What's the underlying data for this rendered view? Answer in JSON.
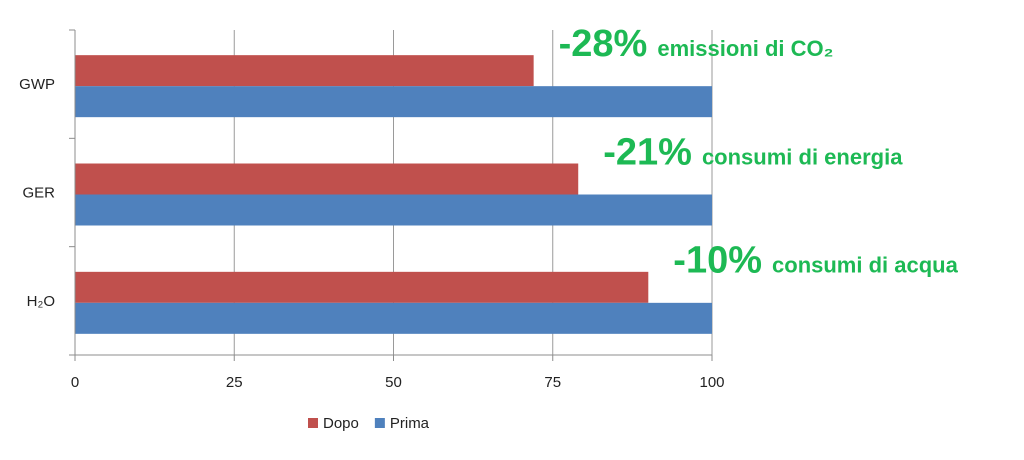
{
  "chart_data": {
    "type": "bar",
    "orientation": "horizontal",
    "categories": [
      "GWP",
      "GER",
      "H₂O"
    ],
    "series": [
      {
        "name": "Dopo",
        "values": [
          72,
          79,
          90
        ],
        "color": "#c0504d"
      },
      {
        "name": "Prima",
        "values": [
          100,
          100,
          100
        ],
        "color": "#4f81bd"
      }
    ],
    "xlim": [
      0,
      100
    ],
    "xticks": [
      "0",
      "25",
      "50",
      "75",
      "100"
    ],
    "grid": true,
    "legend_position": "bottom",
    "annotations": [
      {
        "category": "GWP",
        "value": "-28%",
        "text": "emissioni di CO₂"
      },
      {
        "category": "GER",
        "value": "-21%",
        "text": "consumi di energia"
      },
      {
        "category": "H₂O",
        "value": "-10%",
        "text": "consumi di acqua"
      }
    ],
    "annotation_color": "#1db954"
  }
}
